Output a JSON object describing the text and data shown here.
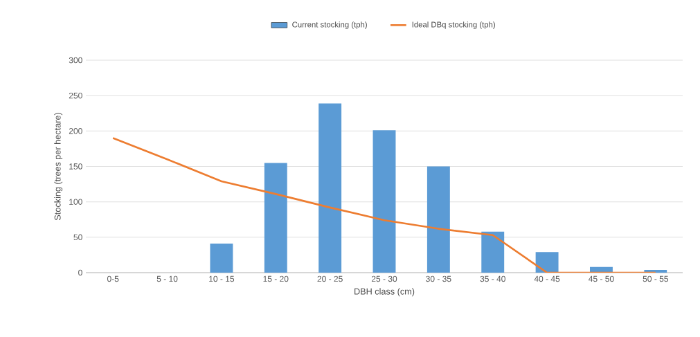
{
  "chart_data": {
    "type": "bar",
    "xlabel": "DBH class (cm)",
    "ylabel": "Stocking (trees per hectare)",
    "categories": [
      "0-5",
      "5 - 10",
      "10 - 15",
      "15 - 20",
      "20 - 25",
      "25 - 30",
      "30 - 35",
      "35 - 40",
      "40 - 45",
      "45 - 50",
      "50 - 55"
    ],
    "series": [
      {
        "name": "Current stocking (tph)",
        "color": "#5b9bd5",
        "values": [
          0,
          0,
          41,
          155,
          239,
          201,
          150,
          58,
          29,
          8,
          4
        ]
      },
      {
        "name": "Ideal DBq stocking (tph)",
        "type": "line",
        "color": "#ed7d31",
        "values": [
          190,
          160,
          129,
          111,
          92,
          74,
          62,
          53,
          0,
          0,
          0
        ]
      }
    ],
    "ylim": [
      0,
      300
    ],
    "yticks": [
      0,
      50,
      100,
      150,
      200,
      250,
      300
    ],
    "grid": "y",
    "legend": "top",
    "marker": "none",
    "line_style": "solid"
  }
}
